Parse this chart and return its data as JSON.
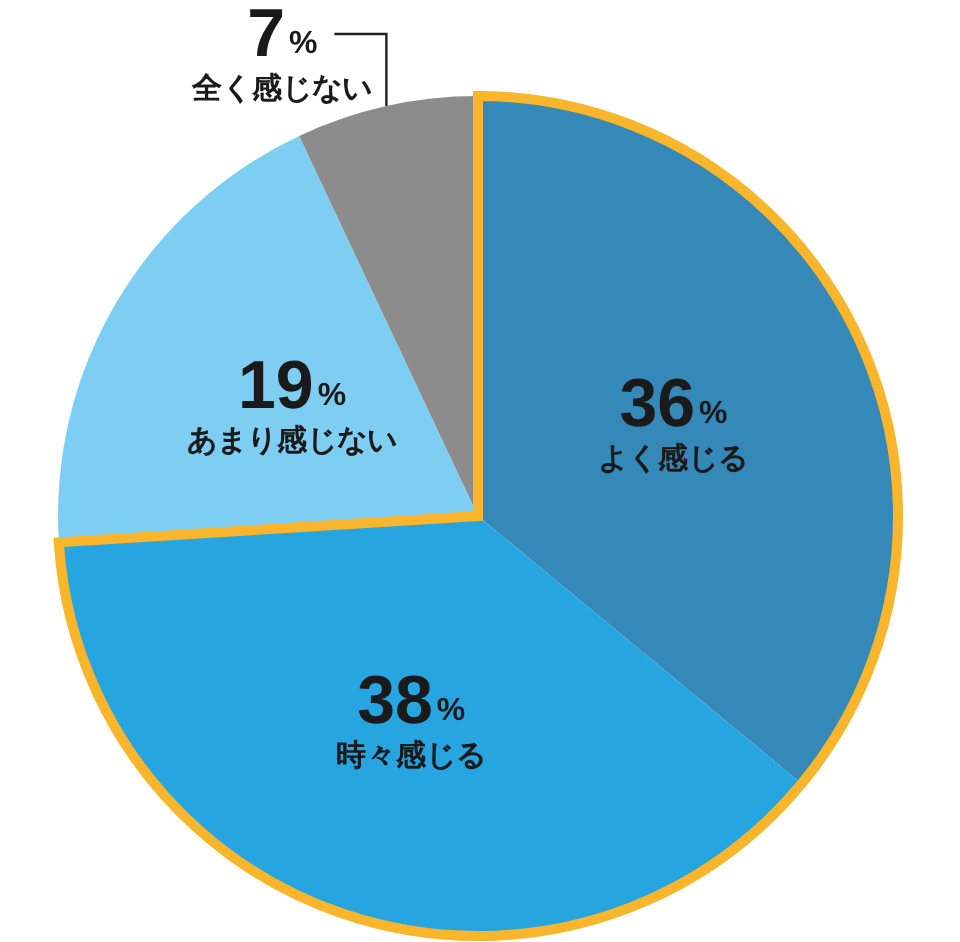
{
  "chart_data": {
    "type": "pie",
    "categories": [
      "よく感じる",
      "時々感じる",
      "あまり感じない",
      "全く感じない"
    ],
    "values": [
      36,
      38,
      19,
      7
    ],
    "colors": [
      "#3589b8",
      "#27a5e0",
      "#7ecef4",
      "#8c8c8c"
    ],
    "value_labels": [
      "36%",
      "38%",
      "19%",
      "7%"
    ]
  }
}
